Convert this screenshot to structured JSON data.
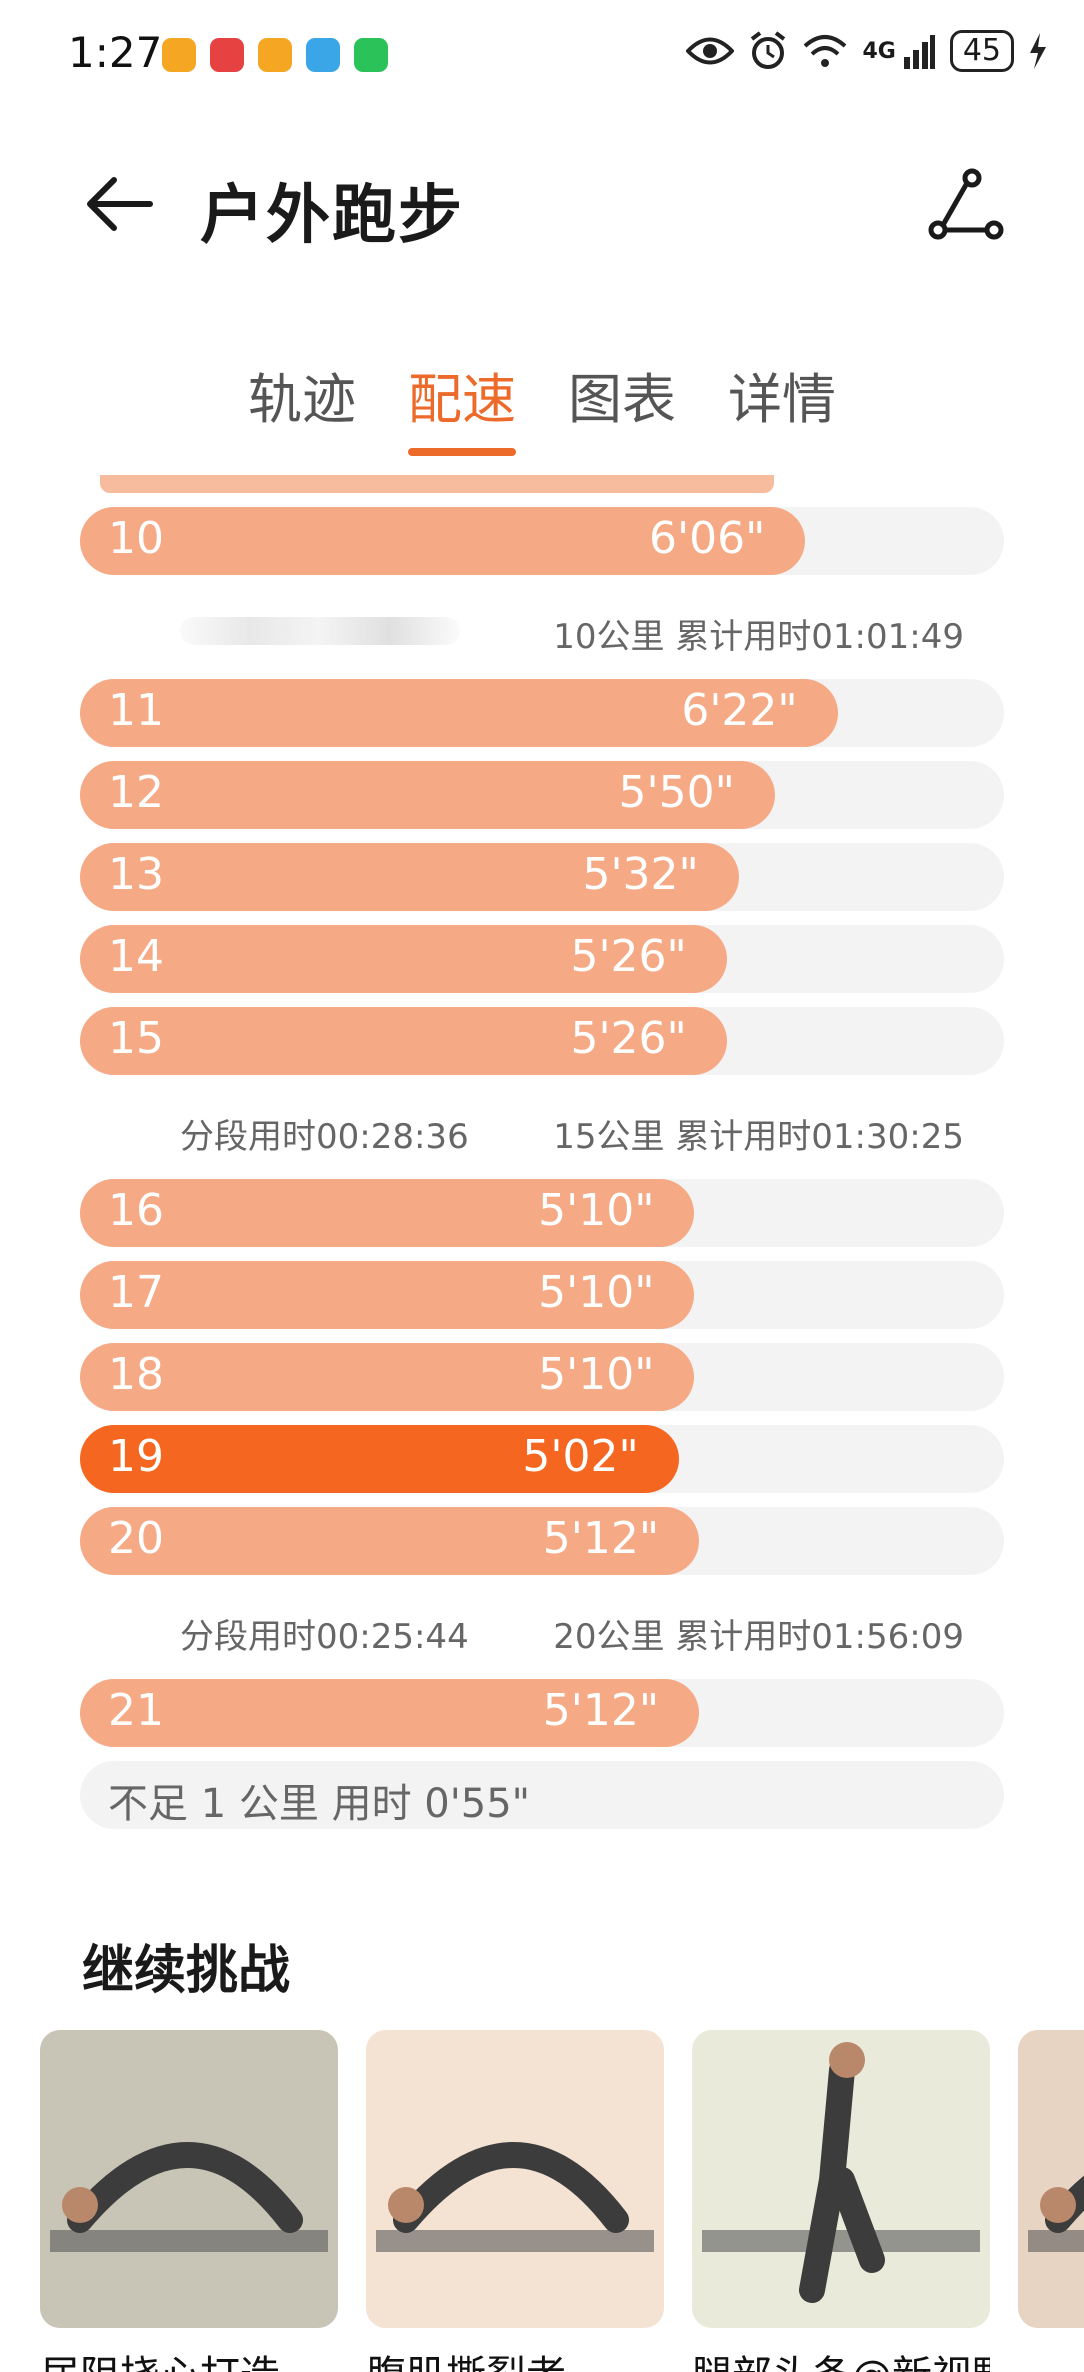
{
  "status_bar": {
    "time": "1:27",
    "network": "4G",
    "battery": "45",
    "app_colors": [
      "#f5a623",
      "#e64242",
      "#f5a623",
      "#3aa6e8",
      "#2cc25a"
    ]
  },
  "header": {
    "title": "户外跑步",
    "back_icon": "back-arrow-icon",
    "share_icon": "share-route-icon"
  },
  "tabs": [
    {
      "label": "轨迹",
      "active": false
    },
    {
      "label": "配速",
      "active": true
    },
    {
      "label": "图表",
      "active": false
    },
    {
      "label": "详情",
      "active": false
    }
  ],
  "colors": {
    "accent": "#ec6a2a",
    "bar": "#f6a985",
    "bar_highlight": "#f56621",
    "track": "#f3f3f3"
  },
  "splits": [
    {
      "km": "10",
      "pace": "6'06\"",
      "fill": 0.785,
      "highlight": false
    },
    {
      "type": "summary",
      "segment": "",
      "cumulative": "10公里 累计用时01:01:49",
      "blurred": true
    },
    {
      "km": "11",
      "pace": "6'22\"",
      "fill": 0.82,
      "highlight": false
    },
    {
      "km": "12",
      "pace": "5'50\"",
      "fill": 0.752,
      "highlight": false
    },
    {
      "km": "13",
      "pace": "5'32\"",
      "fill": 0.713,
      "highlight": false
    },
    {
      "km": "14",
      "pace": "5'26\"",
      "fill": 0.7,
      "highlight": false
    },
    {
      "km": "15",
      "pace": "5'26\"",
      "fill": 0.7,
      "highlight": false
    },
    {
      "type": "summary",
      "segment": "分段用时00:28:36",
      "cumulative": "15公里 累计用时01:30:25",
      "blurred": false
    },
    {
      "km": "16",
      "pace": "5'10\"",
      "fill": 0.665,
      "highlight": false
    },
    {
      "km": "17",
      "pace": "5'10\"",
      "fill": 0.665,
      "highlight": false
    },
    {
      "km": "18",
      "pace": "5'10\"",
      "fill": 0.665,
      "highlight": false
    },
    {
      "km": "19",
      "pace": "5'02\"",
      "fill": 0.648,
      "highlight": true
    },
    {
      "km": "20",
      "pace": "5'12\"",
      "fill": 0.67,
      "highlight": false
    },
    {
      "type": "summary",
      "segment": "分段用时00:25:44",
      "cumulative": "20公里 累计用时01:56:09",
      "blurred": false
    },
    {
      "km": "21",
      "pace": "5'12\"",
      "fill": 0.67,
      "highlight": false
    }
  ],
  "short_segment": "不足 1 公里 用时 0'55\"",
  "challenge": {
    "title": "继续挑战",
    "cards": [
      {
        "label": "居阻挠心打造",
        "bg": "#c8c4b6"
      },
      {
        "label": "腹肌撕裂者",
        "bg": "#f4e2d3"
      },
      {
        "label": "腿部头条@新视野跑步",
        "bg": "#e9ead9"
      },
      {
        "label": "",
        "bg": "#e8d4c2"
      }
    ]
  }
}
